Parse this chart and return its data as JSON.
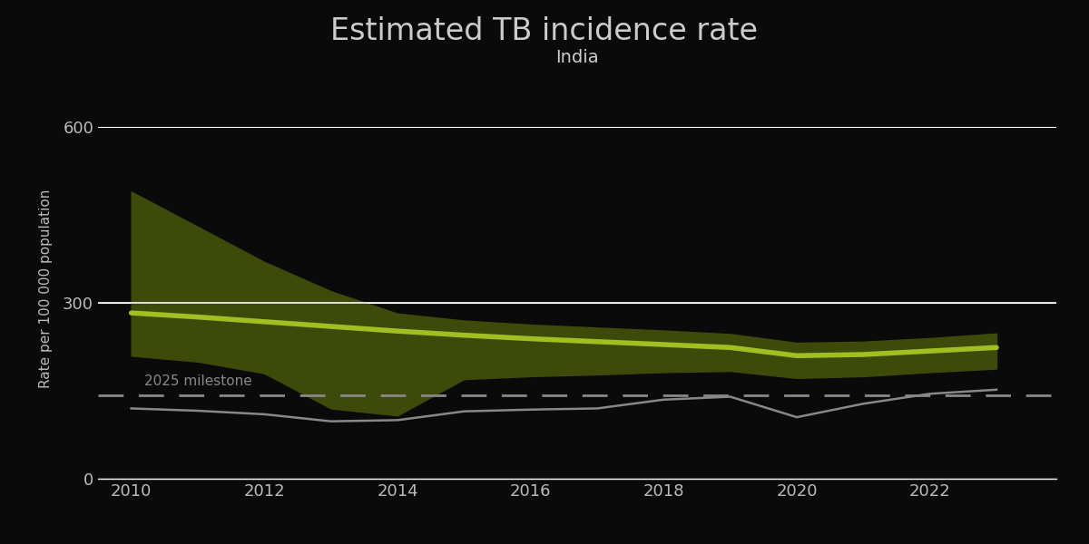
{
  "title": "Estimated TB incidence rate",
  "subtitle": "India",
  "ylabel": "Rate per 100 000 population",
  "background_color": "#0a0a0a",
  "text_color": "#bbbbbb",
  "title_color": "#cccccc",
  "years": [
    2010,
    2011,
    2012,
    2013,
    2014,
    2015,
    2016,
    2017,
    2018,
    2019,
    2020,
    2021,
    2022,
    2023
  ],
  "central_estimate": [
    283,
    276,
    268,
    260,
    252,
    245,
    239,
    234,
    229,
    224,
    210,
    212,
    218,
    224
  ],
  "upper_bound": [
    490,
    430,
    370,
    320,
    282,
    270,
    263,
    258,
    253,
    247,
    232,
    234,
    240,
    248
  ],
  "lower_bound": [
    210,
    200,
    180,
    120,
    108,
    170,
    175,
    178,
    182,
    184,
    172,
    175,
    182,
    188
  ],
  "milestone_value": 142,
  "gray_line": [
    120,
    116,
    110,
    98,
    100,
    115,
    118,
    120,
    135,
    140,
    105,
    128,
    145,
    152
  ],
  "hline_value": 300,
  "ylim": [
    0,
    650
  ],
  "yticks": [
    0,
    300,
    600
  ],
  "fill_color": "#3d4a0a",
  "line_color": "#9fc020",
  "milestone_color": "#888888",
  "gray_line_color": "#888888",
  "hline_color": "#ffffff",
  "milestone_label": "2025 milestone",
  "title_fontsize": 24,
  "subtitle_fontsize": 14
}
